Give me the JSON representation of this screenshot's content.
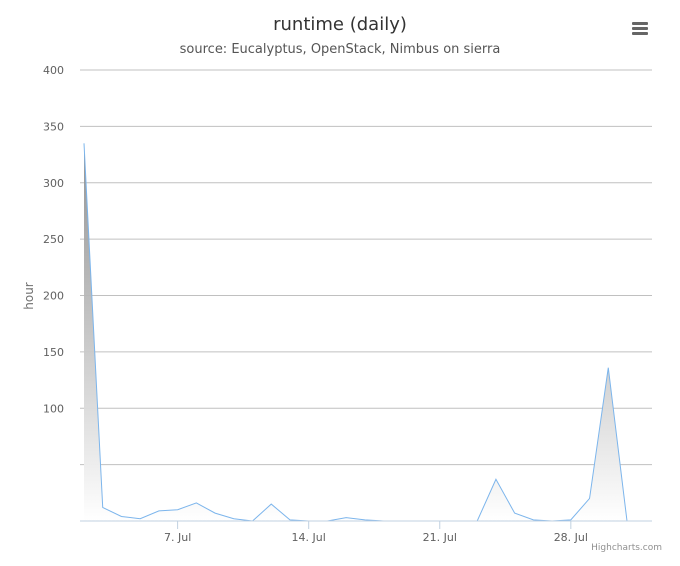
{
  "chart_data": {
    "type": "area",
    "title": "runtime (daily)",
    "subtitle": "source: Eucalyptus, OpenStack, Nimbus on sierra",
    "ylabel": "hour",
    "ylim": [
      0,
      400
    ],
    "y_tick_values": [
      100,
      150,
      200,
      250,
      300,
      350,
      400
    ],
    "y_gridlines": [
      0,
      50,
      100,
      150,
      200,
      250,
      300,
      350,
      400
    ],
    "x_range": [
      "2014-07-02",
      "2014-07-31"
    ],
    "x_ticks": [
      {
        "date": "2014-07-07",
        "label": "7. Jul"
      },
      {
        "date": "2014-07-14",
        "label": "14. Jul"
      },
      {
        "date": "2014-07-21",
        "label": "21. Jul"
      },
      {
        "date": "2014-07-28",
        "label": "28. Jul"
      }
    ],
    "grid": true,
    "legend": "none",
    "series": [
      {
        "color": "#7cb5ec",
        "points": [
          {
            "x": "2014-07-02",
            "y": 335
          },
          {
            "x": "2014-07-03",
            "y": 12
          },
          {
            "x": "2014-07-04",
            "y": 4
          },
          {
            "x": "2014-07-05",
            "y": 2
          },
          {
            "x": "2014-07-06",
            "y": 9
          },
          {
            "x": "2014-07-07",
            "y": 10
          },
          {
            "x": "2014-07-08",
            "y": 16
          },
          {
            "x": "2014-07-09",
            "y": 7
          },
          {
            "x": "2014-07-10",
            "y": 2
          },
          {
            "x": "2014-07-11",
            "y": 0
          },
          {
            "x": "2014-07-12",
            "y": 15
          },
          {
            "x": "2014-07-13",
            "y": 1
          },
          {
            "x": "2014-07-14",
            "y": 0
          },
          {
            "x": "2014-07-15",
            "y": 0
          },
          {
            "x": "2014-07-16",
            "y": 3
          },
          {
            "x": "2014-07-17",
            "y": 1
          },
          {
            "x": "2014-07-18",
            "y": 0
          },
          {
            "x": "2014-07-19",
            "y": 0
          },
          {
            "x": "2014-07-20",
            "y": 0
          },
          {
            "x": "2014-07-21",
            "y": 0
          },
          {
            "x": "2014-07-22",
            "y": 0
          },
          {
            "x": "2014-07-23",
            "y": 0
          },
          {
            "x": "2014-07-24",
            "y": 37
          },
          {
            "x": "2014-07-25",
            "y": 7
          },
          {
            "x": "2014-07-26",
            "y": 1
          },
          {
            "x": "2014-07-27",
            "y": 0
          },
          {
            "x": "2014-07-28",
            "y": 1
          },
          {
            "x": "2014-07-29",
            "y": 20
          },
          {
            "x": "2014-07-30",
            "y": 136
          },
          {
            "x": "2014-07-31",
            "y": 0
          }
        ]
      }
    ]
  },
  "menu": {
    "icon": "hamburger-menu-icon"
  },
  "credits": {
    "text": "Highcharts.com"
  },
  "colors": {
    "series": "#7cb5ec",
    "gridline": "#c0c0c0",
    "axis": "#c0d0e0",
    "area_top": "#888888",
    "area_bottom": "#ffffff"
  }
}
